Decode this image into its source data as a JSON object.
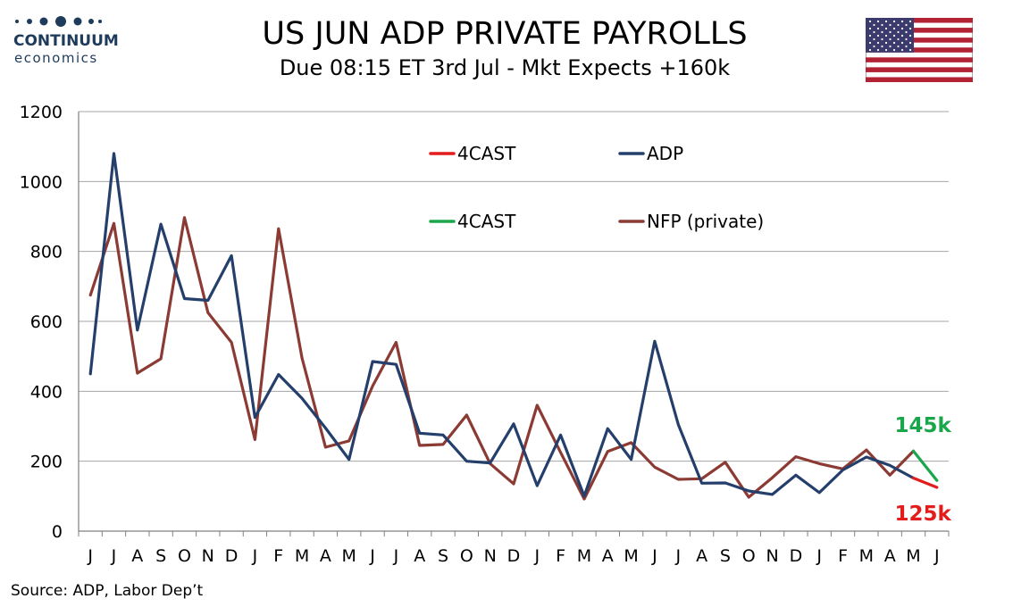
{
  "logo": {
    "name": "CONTINUUM",
    "sub": "economics"
  },
  "title": "US JUN ADP PRIVATE PAYROLLS",
  "subtitle": "Due 08:15 ET 3rd Jul - Mkt Expects +160k",
  "source": "Source: ADP, Labor Dep’t",
  "colors": {
    "adp": "#243f6b",
    "nfp": "#8b3a34",
    "forecast_adp": "#e31c1c",
    "forecast_nfp": "#1aa64a",
    "grid": "#a6a6a6"
  },
  "chart_data": {
    "type": "line",
    "title": "US JUN ADP PRIVATE PAYROLLS",
    "subtitle": "Due 08:15 ET 3rd Jul - Mkt Expects +160k",
    "ylim": [
      0,
      1200
    ],
    "yticks": [
      "0",
      "200",
      "400",
      "600",
      "800",
      "1000",
      "1200"
    ],
    "grid": true,
    "legend": "inside, upper area",
    "categories": [
      "J",
      "J",
      "A",
      "S",
      "O",
      "N",
      "D",
      "J",
      "F",
      "M",
      "A",
      "M",
      "J",
      "J",
      "A",
      "S",
      "O",
      "N",
      "D",
      "J",
      "F",
      "M",
      "A",
      "M",
      "J",
      "J",
      "A",
      "S",
      "O",
      "N",
      "D",
      "J",
      "F",
      "M",
      "A",
      "M",
      "J"
    ],
    "series": [
      {
        "name": "ADP",
        "values": [
          450,
          1080,
          575,
          878,
          665,
          660,
          788,
          325,
          448,
          380,
          295,
          205,
          485,
          477,
          280,
          275,
          200,
          195,
          307,
          130,
          275,
          100,
          293,
          205,
          543,
          305,
          137,
          138,
          115,
          105,
          160,
          110,
          175,
          212,
          188,
          152,
          null
        ]
      },
      {
        "name": "NFP (private)",
        "values": [
          675,
          880,
          452,
          493,
          897,
          625,
          540,
          262,
          865,
          495,
          240,
          258,
          415,
          540,
          245,
          248,
          332,
          193,
          135,
          360,
          225,
          92,
          228,
          253,
          183,
          148,
          150,
          197,
          97,
          153,
          213,
          193,
          178,
          232,
          160,
          229,
          null
        ]
      },
      {
        "name": "4CAST",
        "role": "ADP forecast",
        "values": [
          null,
          null,
          null,
          null,
          null,
          null,
          null,
          null,
          null,
          null,
          null,
          null,
          null,
          null,
          null,
          null,
          null,
          null,
          null,
          null,
          null,
          null,
          null,
          null,
          null,
          null,
          null,
          null,
          null,
          null,
          null,
          null,
          null,
          null,
          null,
          152,
          125
        ]
      },
      {
        "name": "4CAST",
        "role": "NFP forecast",
        "values": [
          null,
          null,
          null,
          null,
          null,
          null,
          null,
          null,
          null,
          null,
          null,
          null,
          null,
          null,
          null,
          null,
          null,
          null,
          null,
          null,
          null,
          null,
          null,
          null,
          null,
          null,
          null,
          null,
          null,
          null,
          null,
          null,
          null,
          null,
          null,
          229,
          145
        ]
      }
    ],
    "legend_entries": [
      {
        "label": "4CAST",
        "series": 2
      },
      {
        "label": "ADP",
        "series": 0
      },
      {
        "label": "4CAST",
        "series": 3
      },
      {
        "label": "NFP (private)",
        "series": 1
      }
    ],
    "annotations": [
      {
        "text": "145k",
        "value": 145,
        "series": 3
      },
      {
        "text": "125k",
        "value": 125,
        "series": 2
      }
    ]
  }
}
